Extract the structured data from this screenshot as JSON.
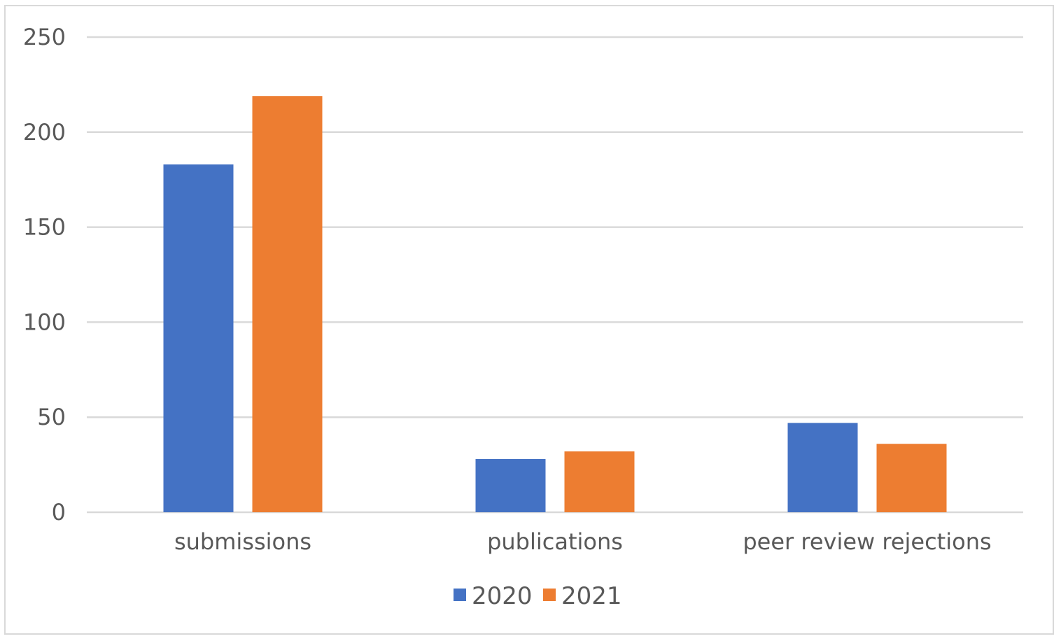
{
  "chart_data": {
    "type": "bar",
    "categories": [
      "submissions",
      "publications",
      "peer review rejections"
    ],
    "series": [
      {
        "name": "2020",
        "values": [
          183,
          28,
          47
        ],
        "color": "#4472c4"
      },
      {
        "name": "2021",
        "values": [
          219,
          32,
          36
        ],
        "color": "#ed7d31"
      }
    ],
    "ylim": [
      0,
      250
    ],
    "yticks": [
      0,
      50,
      100,
      150,
      200,
      250
    ],
    "grid": true,
    "legend": "bottom"
  }
}
